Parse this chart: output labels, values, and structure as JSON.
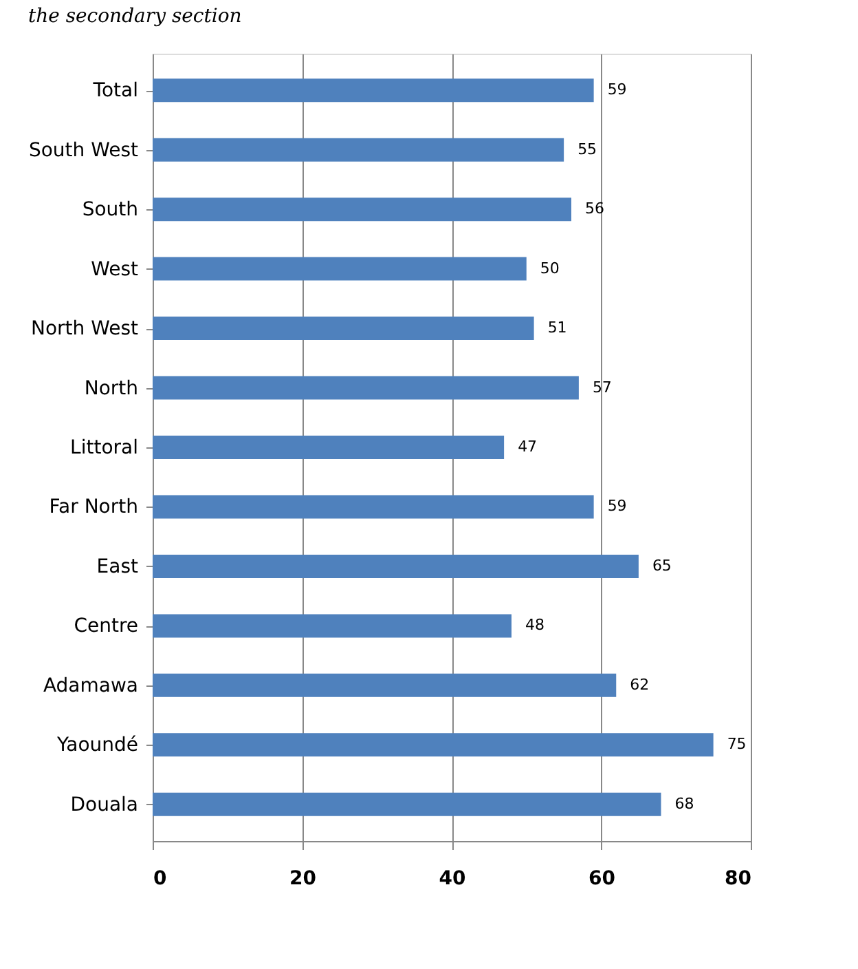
{
  "chart_data": {
    "type": "bar",
    "orientation": "horizontal",
    "annotations": [
      "the secondary section"
    ],
    "categories": [
      "Total",
      "South West",
      "South",
      "West",
      "North West",
      "North",
      "Littoral",
      "Far North",
      "East",
      "Centre",
      "Adamawa",
      "Yaoundé",
      "Douala"
    ],
    "values": [
      59,
      55,
      56,
      50,
      51,
      57,
      47,
      59,
      65,
      48,
      62,
      75,
      68
    ],
    "color": "#4f81bd",
    "xlim": [
      0,
      80
    ],
    "xticks": [
      0,
      20,
      40,
      60,
      80
    ],
    "grid": "x",
    "data_labels": true
  }
}
